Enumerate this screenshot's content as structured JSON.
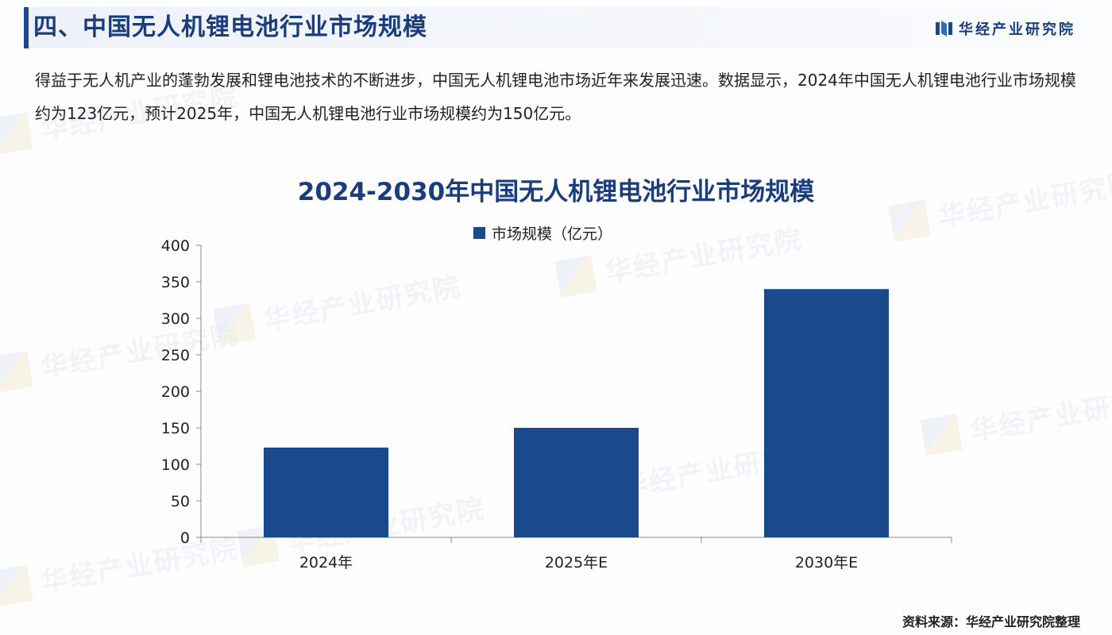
{
  "header": {
    "section_title": "四、中国无人机锂电池行业市场规模",
    "brand_name": "华经产业研究院",
    "brand_icon": "brand-logo-icon"
  },
  "intro_text": "得益于无人机产业的蓬勃发展和锂电池技术的不断进步，中国无人机锂电池市场近年来发展迅速。数据显示，2024年中国无人机锂电池行业市场规模约为123亿元，预计2025年，中国无人机锂电池行业市场规模约为150亿元。",
  "watermark_text": "华经产业研究院",
  "source": "资料来源：华经产业研究院整理",
  "colors": {
    "accent": "#1a4a8c",
    "title": "#1a3d7c",
    "bar": "#1a4a8c"
  },
  "chart_data": {
    "type": "bar",
    "title": "2024-2030年中国无人机锂电池行业市场规模",
    "categories": [
      "2024年",
      "2025年E",
      "2030年E"
    ],
    "series": [
      {
        "name": "市场规模（亿元）",
        "values": [
          123,
          150,
          340
        ]
      }
    ],
    "xlabel": "",
    "ylabel": "",
    "ylim": [
      0,
      400
    ],
    "yticks": [
      0,
      50,
      100,
      150,
      200,
      250,
      300,
      350,
      400
    ],
    "grid": false,
    "legend_position": "top-center"
  }
}
